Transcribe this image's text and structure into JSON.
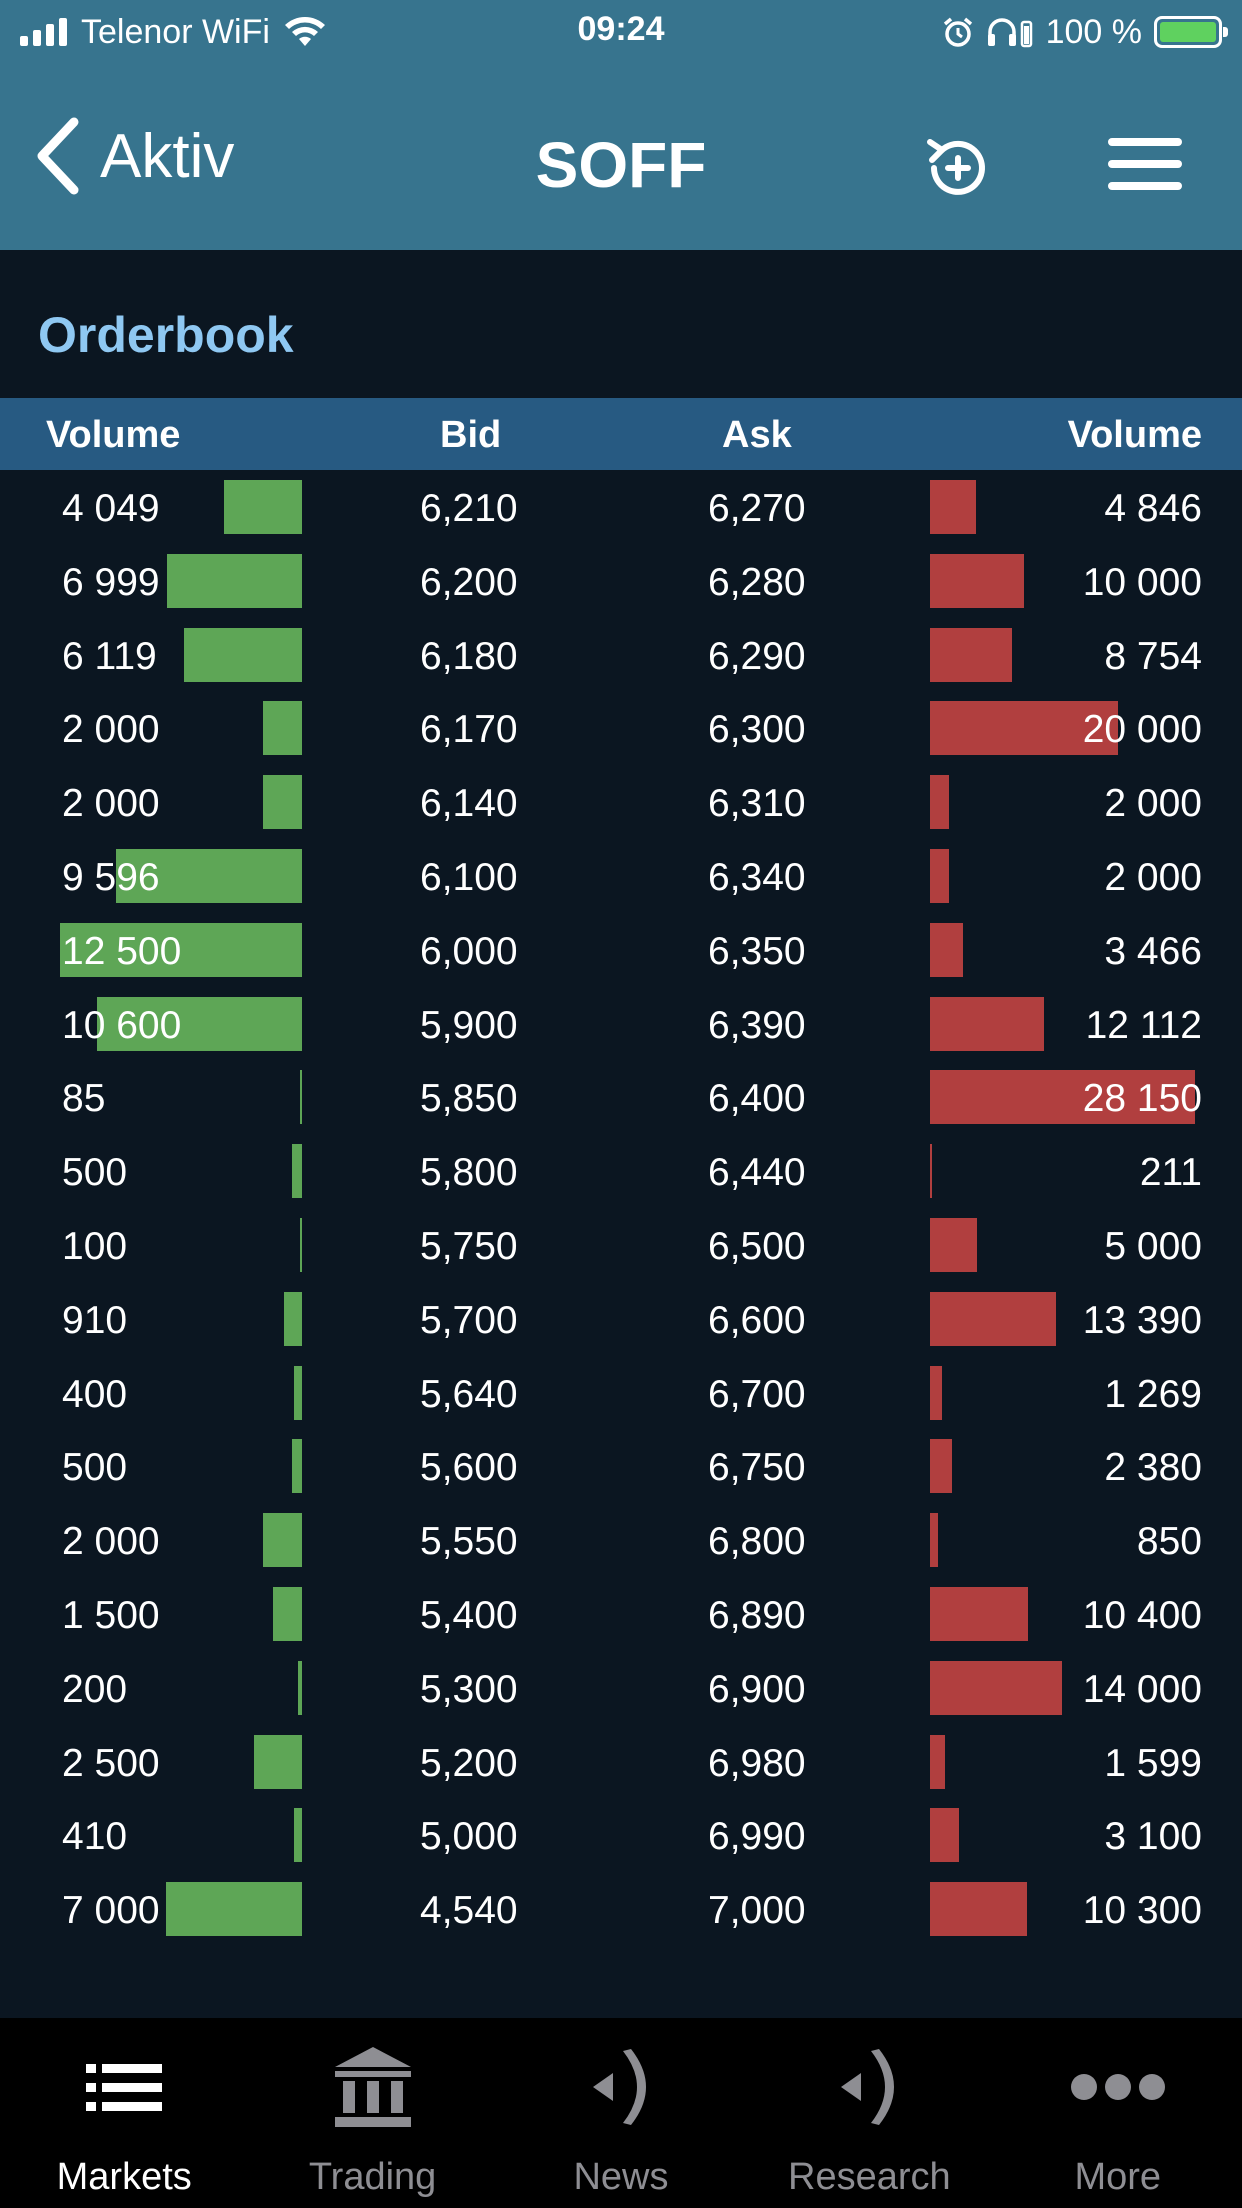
{
  "status_bar": {
    "carrier": "Telenor WiFi",
    "time": "09:24",
    "battery": "100 %"
  },
  "nav": {
    "back_label": "Aktiv",
    "title": "SOFF"
  },
  "section_title": "Orderbook",
  "columns": {
    "bid_volume": "Volume",
    "bid": "Bid",
    "ask": "Ask",
    "ask_volume": "Volume"
  },
  "colors": {
    "bid_bar": "#5ea656",
    "ask_bar": "#b13f3f",
    "header_bg": "#275a82",
    "nav_bg": "#37748e",
    "section_title": "#8fc8f2"
  },
  "rows": [
    {
      "bid_volume": "4 049",
      "bid": "6,210",
      "ask": "6,270",
      "ask_volume": "4 846",
      "bid_qty": 4049,
      "ask_qty": 4846
    },
    {
      "bid_volume": "6 999",
      "bid": "6,200",
      "ask": "6,280",
      "ask_volume": "10 000",
      "bid_qty": 6999,
      "ask_qty": 10000
    },
    {
      "bid_volume": "6 119",
      "bid": "6,180",
      "ask": "6,290",
      "ask_volume": "8 754",
      "bid_qty": 6119,
      "ask_qty": 8754
    },
    {
      "bid_volume": "2 000",
      "bid": "6,170",
      "ask": "6,300",
      "ask_volume": "20 000",
      "bid_qty": 2000,
      "ask_qty": 20000
    },
    {
      "bid_volume": "2 000",
      "bid": "6,140",
      "ask": "6,310",
      "ask_volume": "2 000",
      "bid_qty": 2000,
      "ask_qty": 2000
    },
    {
      "bid_volume": "9 596",
      "bid": "6,100",
      "ask": "6,340",
      "ask_volume": "2 000",
      "bid_qty": 9596,
      "ask_qty": 2000
    },
    {
      "bid_volume": "12 500",
      "bid": "6,000",
      "ask": "6,350",
      "ask_volume": "3 466",
      "bid_qty": 12500,
      "ask_qty": 3466
    },
    {
      "bid_volume": "10 600",
      "bid": "5,900",
      "ask": "6,390",
      "ask_volume": "12 112",
      "bid_qty": 10600,
      "ask_qty": 12112
    },
    {
      "bid_volume": "85",
      "bid": "5,850",
      "ask": "6,400",
      "ask_volume": "28 150",
      "bid_qty": 85,
      "ask_qty": 28150
    },
    {
      "bid_volume": "500",
      "bid": "5,800",
      "ask": "6,440",
      "ask_volume": "211",
      "bid_qty": 500,
      "ask_qty": 211
    },
    {
      "bid_volume": "100",
      "bid": "5,750",
      "ask": "6,500",
      "ask_volume": "5 000",
      "bid_qty": 100,
      "ask_qty": 5000
    },
    {
      "bid_volume": "910",
      "bid": "5,700",
      "ask": "6,600",
      "ask_volume": "13 390",
      "bid_qty": 910,
      "ask_qty": 13390
    },
    {
      "bid_volume": "400",
      "bid": "5,640",
      "ask": "6,700",
      "ask_volume": "1 269",
      "bid_qty": 400,
      "ask_qty": 1269
    },
    {
      "bid_volume": "500",
      "bid": "5,600",
      "ask": "6,750",
      "ask_volume": "2 380",
      "bid_qty": 500,
      "ask_qty": 2380
    },
    {
      "bid_volume": "2 000",
      "bid": "5,550",
      "ask": "6,800",
      "ask_volume": "850",
      "bid_qty": 2000,
      "ask_qty": 850
    },
    {
      "bid_volume": "1 500",
      "bid": "5,400",
      "ask": "6,890",
      "ask_volume": "10 400",
      "bid_qty": 1500,
      "ask_qty": 10400
    },
    {
      "bid_volume": "200",
      "bid": "5,300",
      "ask": "6,900",
      "ask_volume": "14 000",
      "bid_qty": 200,
      "ask_qty": 14000
    },
    {
      "bid_volume": "2 500",
      "bid": "5,200",
      "ask": "6,980",
      "ask_volume": "1 599",
      "bid_qty": 2500,
      "ask_qty": 1599
    },
    {
      "bid_volume": "410",
      "bid": "5,000",
      "ask": "6,990",
      "ask_volume": "3 100",
      "bid_qty": 410,
      "ask_qty": 3100
    },
    {
      "bid_volume": "7 000",
      "bid": "4,540",
      "ask": "7,000",
      "ask_volume": "10 300",
      "bid_qty": 7000,
      "ask_qty": 10300
    }
  ],
  "tabs": [
    {
      "label": "Markets",
      "icon": "list-icon",
      "active": true
    },
    {
      "label": "Trading",
      "icon": "bank-icon",
      "active": false
    },
    {
      "label": "News",
      "icon": "broadcast-icon",
      "active": false
    },
    {
      "label": "Research",
      "icon": "broadcast-icon",
      "active": false
    },
    {
      "label": "More",
      "icon": "more-dots-icon",
      "active": false
    }
  ]
}
